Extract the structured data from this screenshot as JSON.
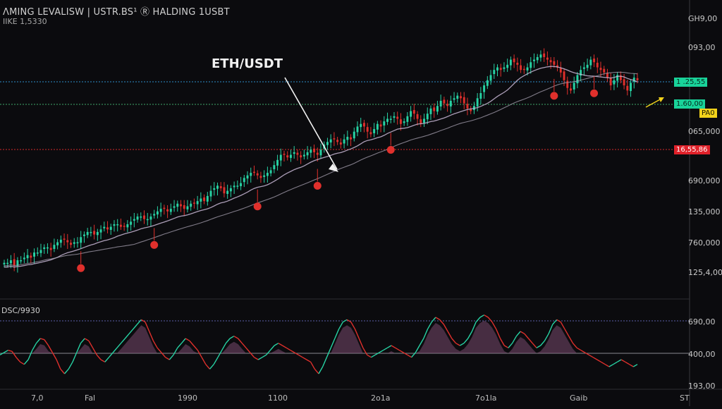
{
  "header": {
    "line1": "ΛMING LEVALISW | USTR.BS¹  Ⓡ  HALDING 1USBT",
    "line2": "IIKE 1,5330"
  },
  "pair_label": "ETH/USDT",
  "subchart_label": "DSC/9930",
  "price_axis": [
    "GH9,00",
    "093,00",
    "065,000",
    "690,000",
    "135,000",
    "760,000",
    "125,4,00"
  ],
  "sub_axis": [
    "690,00",
    "400,00",
    "193,00"
  ],
  "time_axis": [
    "7,0",
    "Fal",
    "1990",
    "1100",
    "2o1a",
    "7o1la",
    "Gaib",
    "ST"
  ],
  "price_tags": [
    {
      "text": "1 .25,55",
      "color": "#19d39a"
    },
    {
      "text": "1.60,00",
      "color": "#19d39a"
    },
    {
      "text": "PA0",
      "color": "#f2d21b"
    },
    {
      "text": "16,55,86",
      "color": "#e0212a"
    }
  ],
  "colors": {
    "background": "#0b0b0e",
    "bull": "#27d3a4",
    "bear": "#e0302c",
    "level_blue": "#2c8fc9",
    "level_green": "#3fa86a",
    "level_red": "#d52a2a",
    "ma": "#c9b8d6"
  },
  "chart_data": {
    "type": "candlestick",
    "title": "ETH/USDT",
    "x_tick_labels": [
      "7,0",
      "Fal",
      "1990",
      "1100",
      "2o1a",
      "7o1la",
      "Gaib",
      "ST"
    ],
    "y_tick_labels": [
      "GH9,00",
      "093,00",
      "065,000",
      "690,000",
      "135,000",
      "760,000",
      "125,4,00"
    ],
    "horizontal_levels": [
      {
        "color": "blue",
        "style": "dotted"
      },
      {
        "color": "green",
        "style": "dotted"
      },
      {
        "color": "red",
        "style": "dotted"
      }
    ],
    "close": [
      62,
      62,
      63,
      61,
      63,
      63,
      64,
      65,
      64,
      66,
      66,
      67,
      68,
      68,
      67,
      69,
      70,
      71,
      71,
      70,
      69,
      70,
      70,
      72,
      73,
      74,
      74,
      73,
      74,
      75,
      76,
      75,
      76,
      77,
      77,
      76,
      76,
      77,
      78,
      79,
      80,
      80,
      79,
      79,
      80,
      81,
      82,
      83,
      83,
      82,
      83,
      84,
      85,
      84,
      83,
      84,
      85,
      85,
      86,
      87,
      86,
      88,
      90,
      91,
      92,
      91,
      89,
      90,
      91,
      92,
      92,
      93,
      95,
      96,
      97,
      97,
      96,
      95,
      96,
      97,
      98,
      100,
      102,
      104,
      104,
      103,
      104,
      105,
      104,
      103,
      104,
      105,
      106,
      105,
      104,
      106,
      108,
      109,
      110,
      110,
      109,
      108,
      110,
      111,
      110,
      113,
      115,
      116,
      115,
      113,
      112,
      114,
      116,
      115,
      117,
      118,
      118,
      119,
      118,
      116,
      117,
      119,
      121,
      120,
      118,
      116,
      118,
      120,
      122,
      121,
      123,
      125,
      124,
      123,
      125,
      126,
      127,
      126,
      124,
      122,
      121,
      123,
      126,
      128,
      131,
      133,
      135,
      137,
      138,
      137,
      138,
      139,
      141,
      140,
      139,
      137,
      137,
      138,
      140,
      141,
      142,
      143,
      142,
      141,
      140,
      139,
      138,
      136,
      133,
      130,
      129,
      132,
      135,
      137,
      138,
      139,
      141,
      140,
      138,
      137,
      136,
      134,
      131,
      133,
      135,
      133,
      131,
      129,
      132,
      134,
      133
    ],
    "ma_note": "moving average overlay",
    "signal_markers": 10
  },
  "oscillator_data": {
    "type": "line",
    "values": [
      42,
      44,
      46,
      45,
      40,
      36,
      34,
      38,
      46,
      52,
      56,
      55,
      50,
      44,
      38,
      30,
      26,
      30,
      36,
      44,
      52,
      56,
      54,
      48,
      42,
      38,
      36,
      40,
      44,
      48,
      52,
      56,
      60,
      64,
      68,
      72,
      70,
      62,
      54,
      48,
      44,
      40,
      38,
      42,
      48,
      52,
      56,
      54,
      50,
      46,
      40,
      34,
      30,
      34,
      40,
      46,
      52,
      56,
      58,
      56,
      52,
      48,
      44,
      40,
      38,
      40,
      42,
      46,
      50,
      52,
      50,
      48,
      46,
      44,
      42,
      40,
      38,
      36,
      30,
      26,
      32,
      40,
      48,
      56,
      64,
      70,
      72,
      70,
      64,
      56,
      48,
      42,
      40,
      42,
      44,
      46,
      48,
      50,
      48,
      46,
      44,
      42,
      40,
      44,
      50,
      56,
      64,
      70,
      74,
      72,
      68,
      62,
      56,
      52,
      50,
      52,
      56,
      62,
      70,
      74,
      76,
      74,
      70,
      64,
      56,
      50,
      48,
      52,
      58,
      62,
      60,
      56,
      52,
      48,
      50,
      54,
      60,
      68,
      72,
      70,
      64,
      58,
      52,
      48,
      46,
      44,
      42,
      40,
      38,
      36,
      34,
      32,
      34,
      36,
      38,
      36,
      34,
      32,
      34
    ]
  }
}
